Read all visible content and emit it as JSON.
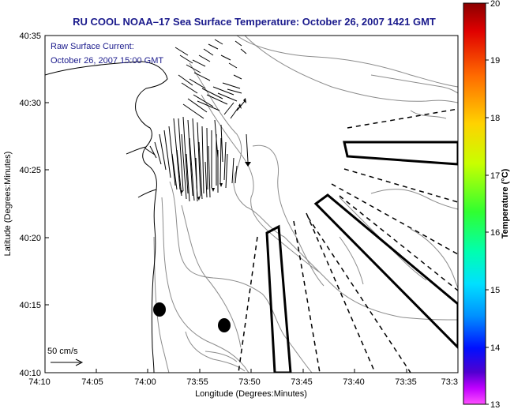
{
  "title": "RU COOL  NOAA–17  Sea Surface Temperature:  October 26, 2007 1421 GMT",
  "annotation": {
    "line1": "Raw Surface Current:",
    "line2": "October 26, 2007 15:00 GMT"
  },
  "scale_label": "50 cm/s",
  "axes": {
    "xlabel": "Longitude (Degrees:Minutes)",
    "ylabel": "Latitude (Degrees:Minutes)",
    "xticks": [
      "74:10",
      "74:05",
      "74:00",
      "73:55",
      "73:50",
      "73:45",
      "73:40",
      "73:35",
      "73:3"
    ],
    "yticks": [
      "40:35",
      "40:30",
      "40:25",
      "40:20",
      "40:15",
      "40:10"
    ]
  },
  "colorbar": {
    "label": "Temperature (°C)",
    "ticks": [
      "20",
      "19",
      "18",
      "17",
      "16",
      "15",
      "14",
      "13"
    ],
    "range": [
      13,
      20
    ],
    "colors": [
      "#8b0000",
      "#e00000",
      "#ff6a00",
      "#ffd200",
      "#c8ff00",
      "#30ff30",
      "#00ffb0",
      "#00e0ff",
      "#0090ff",
      "#0010ff",
      "#5000d0",
      "#c000ff",
      "#ff50ff"
    ]
  },
  "colors": {
    "title": "#1a1a8c",
    "contour": "#8c8c8c",
    "coast": "#000000"
  }
}
